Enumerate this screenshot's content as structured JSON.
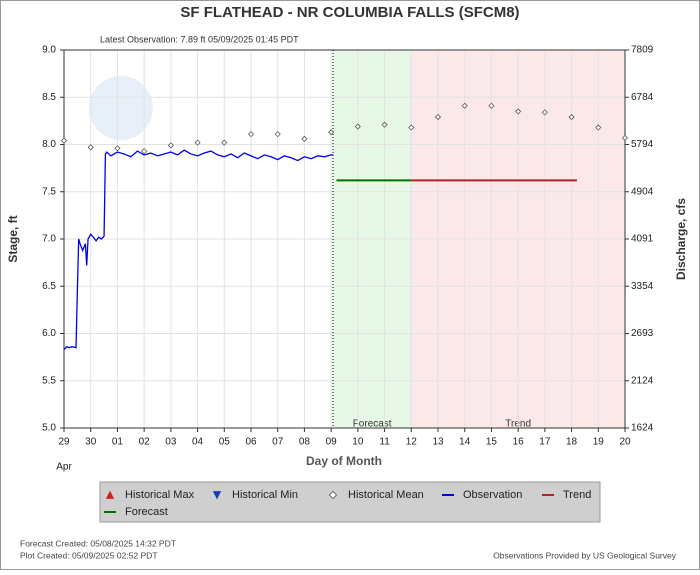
{
  "chart_data": {
    "type": "line",
    "title": "SF FLATHEAD - NR COLUMBIA FALLS  (SFCM8)",
    "subtitle": "Latest Observation: 7.89 ft 05/09/2025 01:45 PDT",
    "ylabel": "Stage, ft",
    "y2label": "Discharge, cfs",
    "xlabel": "Day of Month",
    "month_label": "Apr",
    "region_labels": [
      "Forecast",
      "Trend"
    ],
    "xlim": [
      0,
      21
    ],
    "xticks": [
      {
        "value": 0,
        "label": "29"
      },
      {
        "value": 1,
        "label": "30"
      },
      {
        "value": 2,
        "label": "01"
      },
      {
        "value": 3,
        "label": "02"
      },
      {
        "value": 4,
        "label": "03"
      },
      {
        "value": 5,
        "label": "04"
      },
      {
        "value": 6,
        "label": "05"
      },
      {
        "value": 7,
        "label": "06"
      },
      {
        "value": 8,
        "label": "07"
      },
      {
        "value": 9,
        "label": "08"
      },
      {
        "value": 10,
        "label": "09"
      },
      {
        "value": 11,
        "label": "10"
      },
      {
        "value": 12,
        "label": "11"
      },
      {
        "value": 13,
        "label": "12"
      },
      {
        "value": 14,
        "label": "13"
      },
      {
        "value": 15,
        "label": "14"
      },
      {
        "value": 16,
        "label": "15"
      },
      {
        "value": 17,
        "label": "16"
      },
      {
        "value": 18,
        "label": "17"
      },
      {
        "value": 19,
        "label": "18"
      },
      {
        "value": 20,
        "label": "19"
      },
      {
        "value": 21,
        "label": "20"
      }
    ],
    "ylim": [
      5,
      9
    ],
    "yticks": [
      {
        "value": 5,
        "label": "5.0"
      },
      {
        "value": 5.5,
        "label": "5.5"
      },
      {
        "value": 6,
        "label": "6.0"
      },
      {
        "value": 6.5,
        "label": "6.5"
      },
      {
        "value": 7,
        "label": "7.0"
      },
      {
        "value": 7.5,
        "label": "7.5"
      },
      {
        "value": 8,
        "label": "8.0"
      },
      {
        "value": 8.5,
        "label": "8.5"
      },
      {
        "value": 9,
        "label": "9.0"
      }
    ],
    "y2lim": [
      1624,
      7809
    ],
    "y2ticks": [
      1624,
      2124,
      2693,
      3354,
      4091,
      4904,
      5794,
      6784,
      7809
    ],
    "grid": true,
    "series": [
      {
        "name": "Historical Max",
        "color": "#cc2222",
        "marker": "triangle-up",
        "x": [],
        "values": []
      },
      {
        "name": "Historical Min",
        "color": "#1a3cb4",
        "marker": "triangle-down",
        "x": [],
        "values": []
      },
      {
        "name": "Historical Mean",
        "color": "#555555",
        "marker": "diamond",
        "x": [
          0,
          1,
          2,
          3,
          4,
          5,
          6,
          7,
          8,
          9,
          10,
          11,
          12,
          13,
          14,
          15,
          16,
          17,
          18,
          19,
          20,
          21
        ],
        "values": [
          8.04,
          7.97,
          7.96,
          7.93,
          7.99,
          8.02,
          8.02,
          8.11,
          8.11,
          8.06,
          8.13,
          8.19,
          8.21,
          8.18,
          8.29,
          8.41,
          8.41,
          8.35,
          8.34,
          8.29,
          8.18,
          8.07
        ]
      },
      {
        "name": "Observation",
        "color": "#0000ee",
        "marker": "line",
        "x": [
          0,
          0.1,
          0.2,
          0.3,
          0.45,
          0.5,
          0.55,
          0.6,
          0.7,
          0.8,
          0.85,
          0.9,
          1.0,
          1.1,
          1.2,
          1.3,
          1.4,
          1.5,
          1.55,
          1.6,
          1.75,
          2.0,
          2.25,
          2.5,
          2.75,
          3.0,
          3.25,
          3.5,
          3.75,
          4.0,
          4.25,
          4.5,
          4.75,
          5.0,
          5.25,
          5.5,
          5.75,
          6.0,
          6.25,
          6.5,
          6.75,
          7.0,
          7.25,
          7.5,
          7.75,
          8.0,
          8.25,
          8.5,
          8.75,
          9.0,
          9.25,
          9.5,
          9.75,
          10.0,
          10.07
        ],
        "values": [
          5.83,
          5.86,
          5.85,
          5.86,
          5.85,
          6.45,
          7.0,
          6.95,
          6.88,
          6.95,
          6.72,
          7.0,
          7.05,
          7.02,
          6.98,
          7.02,
          7.0,
          7.03,
          7.9,
          7.92,
          7.88,
          7.92,
          7.9,
          7.87,
          7.93,
          7.89,
          7.91,
          7.88,
          7.9,
          7.92,
          7.89,
          7.94,
          7.9,
          7.88,
          7.91,
          7.93,
          7.89,
          7.87,
          7.9,
          7.86,
          7.91,
          7.88,
          7.85,
          7.89,
          7.87,
          7.84,
          7.88,
          7.86,
          7.83,
          7.87,
          7.85,
          7.88,
          7.87,
          7.89,
          7.89
        ]
      },
      {
        "name": "Trend",
        "color": "#b22222",
        "marker": "line",
        "x": [
          13,
          19.2
        ],
        "values": [
          7.62,
          7.62
        ]
      },
      {
        "name": "Forecast",
        "color": "#007000",
        "marker": "line",
        "x": [
          10.2,
          13
        ],
        "values": [
          7.62,
          7.62
        ]
      }
    ],
    "footer_left": [
      "Forecast Created: 05/08/2025 14:32 PDT",
      "Plot Created: 05/09/2025 02:52 PDT"
    ],
    "footer_right": "Observations Provided by US Geological Survey"
  }
}
